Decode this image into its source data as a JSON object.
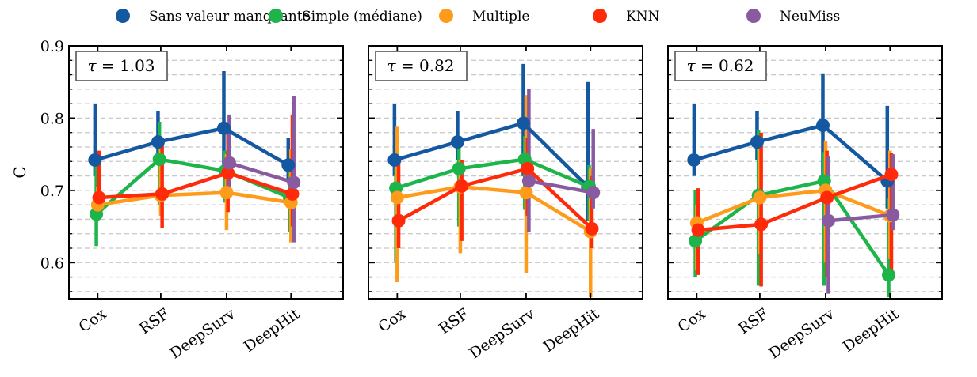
{
  "chart_data": {
    "type": "line",
    "legend_position": "top",
    "ylabel": "C",
    "ylim": [
      0.55,
      0.9
    ],
    "yticks": [
      "0.6",
      "0.7",
      "0.8",
      "0.9"
    ],
    "categories": [
      "Cox",
      "RSF",
      "DeepSurv",
      "DeepHit"
    ],
    "grid": "horizontal dashed",
    "series_legend": [
      {
        "name": "Sans valeur manquante",
        "color": "#1358a0"
      },
      {
        "name": "Simple (médiane)",
        "color": "#1db54a"
      },
      {
        "name": "Multiple",
        "color": "#ff9b1a"
      },
      {
        "name": "KNN",
        "color": "#ff2a0a"
      },
      {
        "name": "NeuMiss",
        "color": "#8a5aa0"
      }
    ],
    "panels": [
      {
        "label": "τ = 1.03",
        "series": [
          {
            "name": "Sans valeur manquante",
            "values": [
              0.742,
              0.767,
              0.786,
              0.735
            ],
            "err_low": [
              0.72,
              0.742,
              0.72,
              0.712
            ],
            "err_high": [
              0.82,
              0.81,
              0.865,
              0.773
            ]
          },
          {
            "name": "Simple (médiane)",
            "values": [
              0.667,
              0.743,
              0.727,
              0.69
            ],
            "err_low": [
              0.623,
              0.68,
              0.683,
              0.642
            ],
            "err_high": [
              0.745,
              0.795,
              0.755,
              0.73
            ]
          },
          {
            "name": "Multiple",
            "values": [
              0.68,
              0.693,
              0.697,
              0.683
            ],
            "err_low": [
              0.66,
              0.665,
              0.645,
              0.628
            ],
            "err_high": [
              0.705,
              0.768,
              0.75,
              0.757
            ]
          },
          {
            "name": "KNN",
            "values": [
              0.69,
              0.695,
              0.724,
              0.695
            ],
            "err_low": [
              0.665,
              0.648,
              0.67,
              0.65
            ],
            "err_high": [
              0.755,
              0.773,
              0.788,
              0.805
            ]
          },
          {
            "name": "NeuMiss",
            "values": [
              null,
              null,
              0.738,
              0.711
            ],
            "err_low": [
              null,
              null,
              0.697,
              0.628
            ],
            "err_high": [
              null,
              null,
              0.805,
              0.83
            ]
          }
        ]
      },
      {
        "label": "τ = 0.82",
        "series": [
          {
            "name": "Sans valeur manquante",
            "values": [
              0.742,
              0.767,
              0.793,
              0.705
            ],
            "err_low": [
              0.72,
              0.742,
              0.72,
              0.658
            ],
            "err_high": [
              0.82,
              0.81,
              0.875,
              0.85
            ]
          },
          {
            "name": "Simple (médiane)",
            "values": [
              0.703,
              0.73,
              0.743,
              0.705
            ],
            "err_low": [
              0.6,
              0.65,
              0.673,
              0.658
            ],
            "err_high": [
              0.74,
              0.767,
              0.775,
              0.735
            ]
          },
          {
            "name": "Multiple",
            "values": [
              0.69,
              0.705,
              0.697,
              0.643
            ],
            "err_low": [
              0.573,
              0.613,
              0.585,
              0.552
            ],
            "err_high": [
              0.788,
              0.742,
              0.832,
              0.73
            ]
          },
          {
            "name": "KNN",
            "values": [
              0.658,
              0.706,
              0.73,
              0.647
            ],
            "err_low": [
              0.62,
              0.63,
              0.665,
              0.62
            ],
            "err_high": [
              0.745,
              0.742,
              0.773,
              0.72
            ]
          },
          {
            "name": "NeuMiss",
            "values": [
              null,
              null,
              0.713,
              0.697
            ],
            "err_low": [
              null,
              null,
              0.643,
              0.675
            ],
            "err_high": [
              null,
              null,
              0.84,
              0.785
            ]
          }
        ]
      },
      {
        "label": "τ = 0.62",
        "series": [
          {
            "name": "Sans valeur manquante",
            "values": [
              0.742,
              0.767,
              0.79,
              0.713
            ],
            "err_low": [
              0.72,
              0.742,
              0.72,
              0.675
            ],
            "err_high": [
              0.82,
              0.81,
              0.862,
              0.817
            ]
          },
          {
            "name": "Simple (médiane)",
            "values": [
              0.63,
              0.693,
              0.713,
              0.583
            ],
            "err_low": [
              0.58,
              0.568,
              0.568,
              0.552
            ],
            "err_high": [
              0.7,
              0.783,
              0.753,
              0.69
            ]
          },
          {
            "name": "Multiple",
            "values": [
              0.655,
              0.69,
              0.7,
              0.665
            ],
            "err_low": [
              0.59,
              0.612,
              0.6,
              0.605
            ],
            "err_high": [
              0.68,
              0.757,
              0.768,
              0.755
            ]
          },
          {
            "name": "KNN",
            "values": [
              0.645,
              0.653,
              0.69,
              0.722
            ],
            "err_low": [
              0.583,
              0.567,
              0.58,
              0.583
            ],
            "err_high": [
              0.703,
              0.78,
              0.755,
              0.752
            ]
          },
          {
            "name": "NeuMiss",
            "values": [
              null,
              null,
              0.658,
              0.666
            ],
            "err_low": [
              null,
              null,
              0.557,
              0.645
            ],
            "err_high": [
              null,
              null,
              0.748,
              0.75
            ]
          }
        ]
      }
    ]
  }
}
